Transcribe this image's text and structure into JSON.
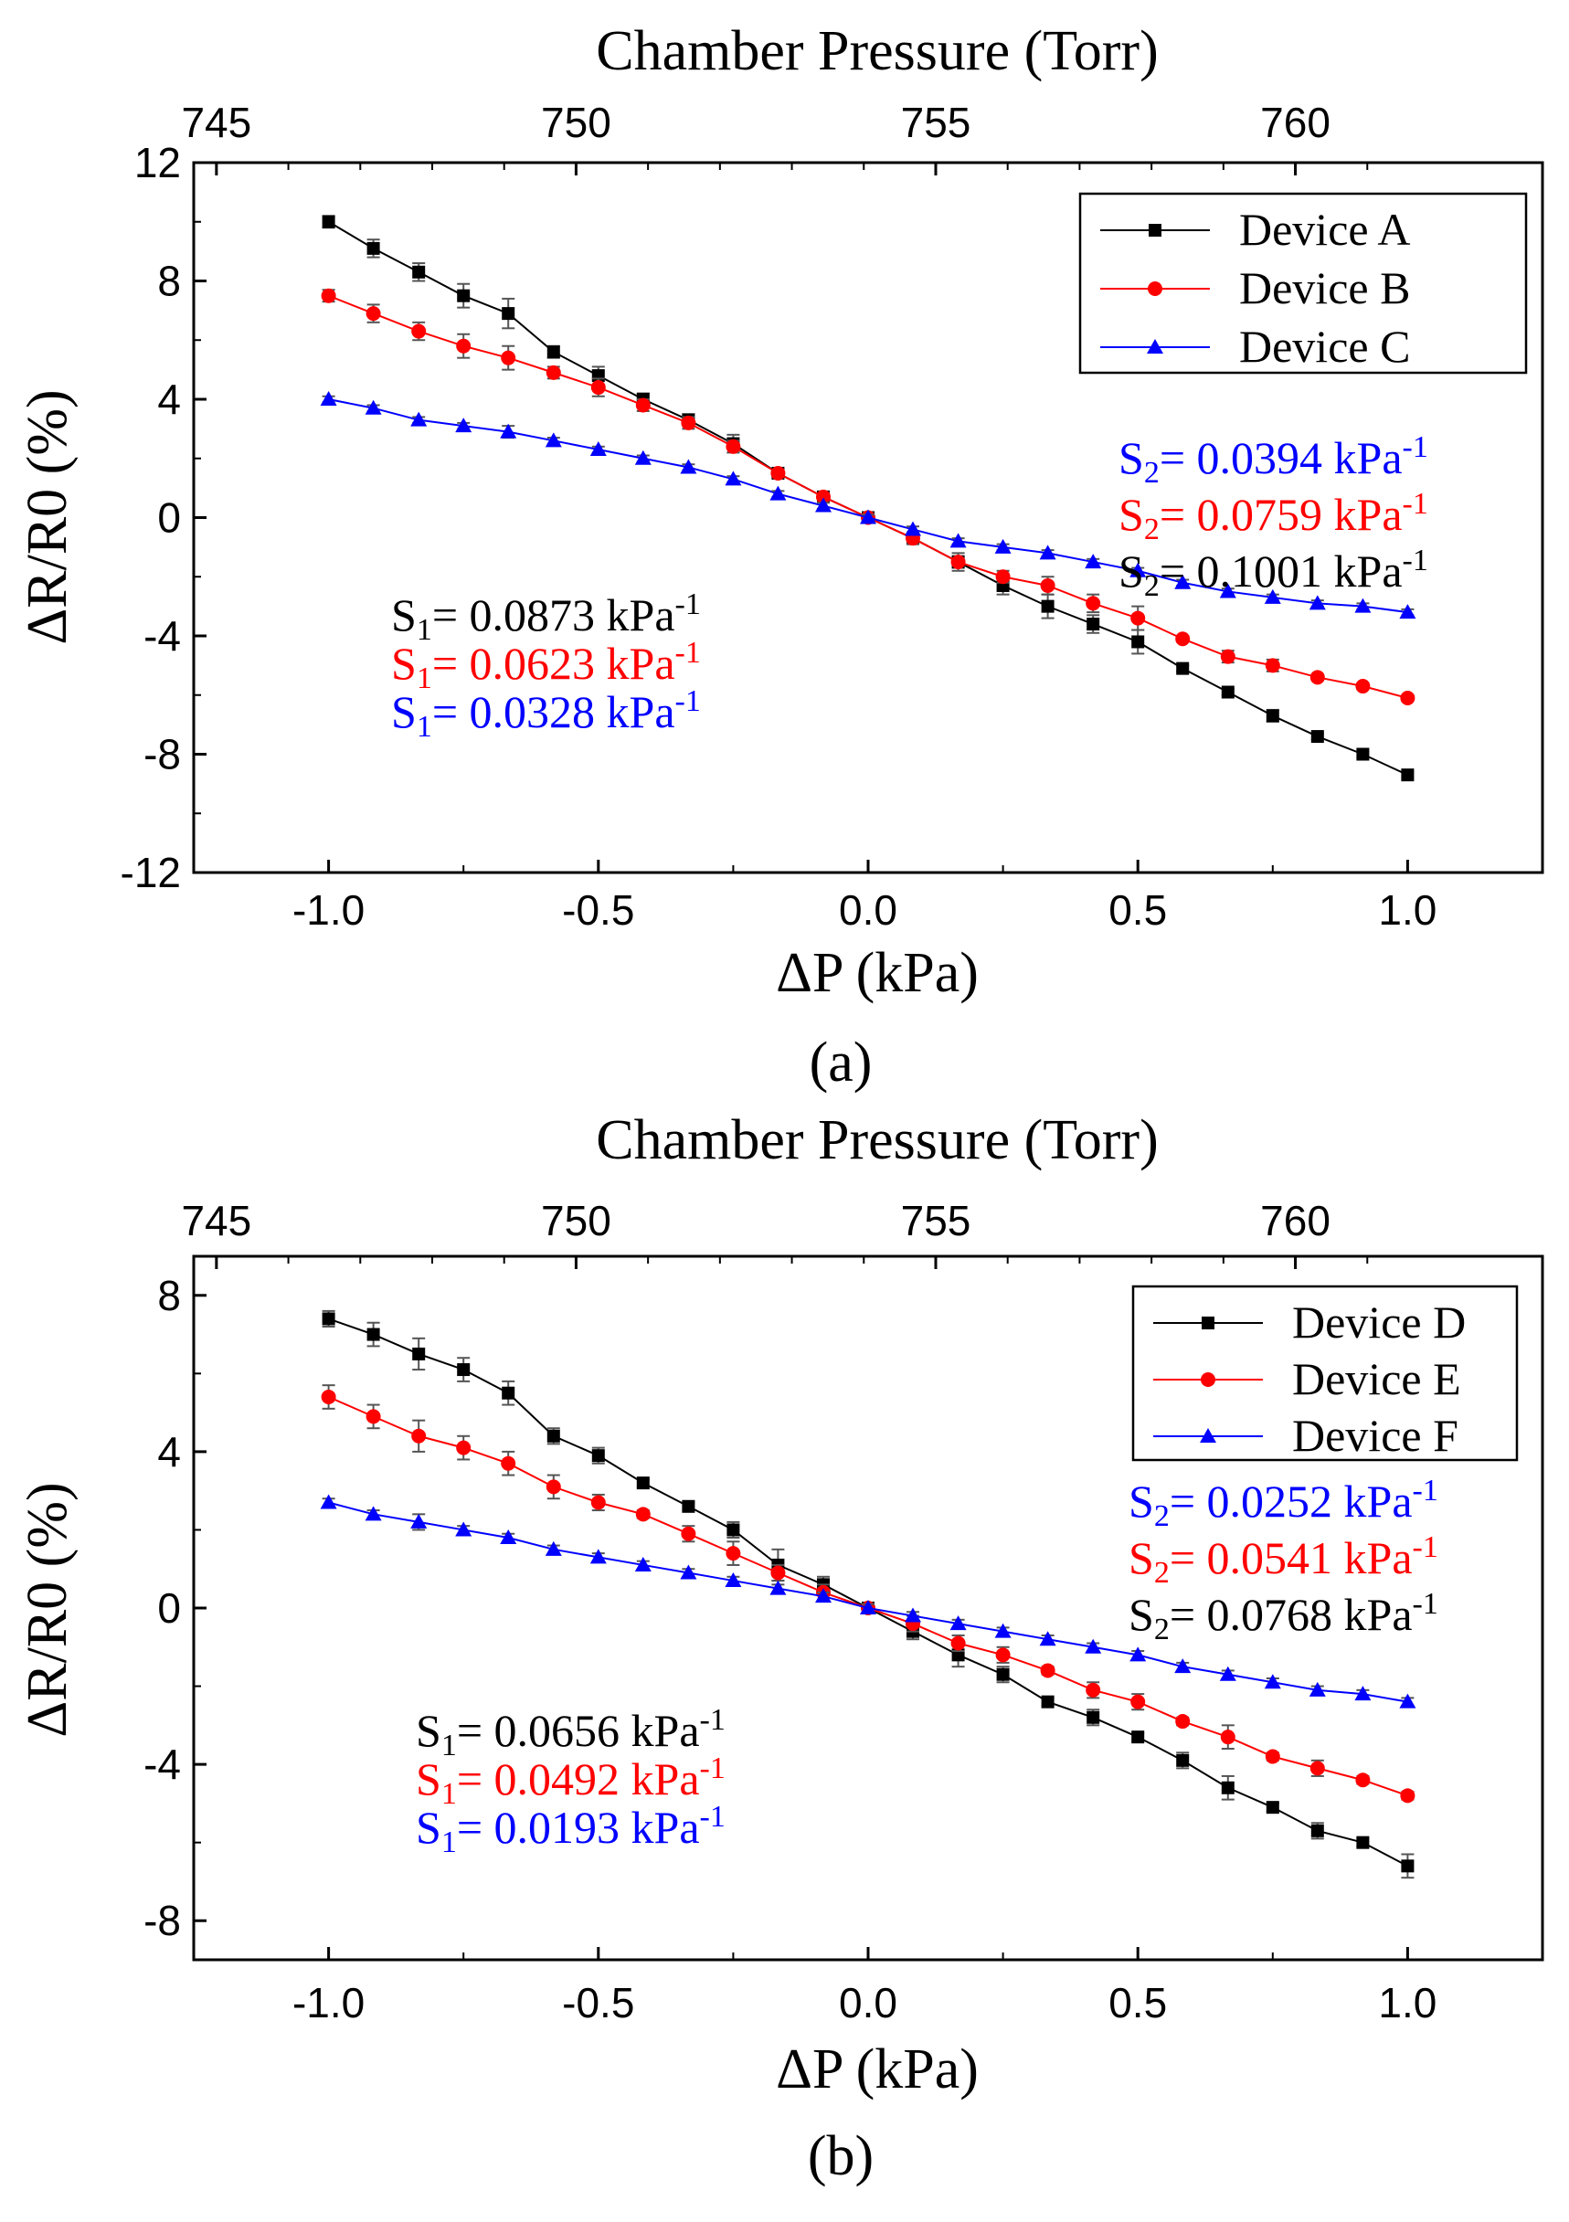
{
  "chart_data": [
    {
      "type": "line",
      "panel_label": "(a)",
      "top_axis_label": "Chamber Pressure (Torr)",
      "xlabel": "ΔP (kPa)",
      "ylabel": "ΔR/R0 (%)",
      "xlim": [
        -1.25,
        1.25
      ],
      "ylim": [
        -12,
        12
      ],
      "x_ticks": [
        -1.0,
        -0.5,
        0.0,
        0.5,
        1.0
      ],
      "x_tick_labels": [
        "-1.0",
        "-0.5",
        "0.0",
        "0.5",
        "1.0"
      ],
      "y_ticks": [
        -12,
        -8,
        -4,
        0,
        4,
        8,
        12
      ],
      "y_tick_labels": [
        "-12",
        "-8",
        "-4",
        "0",
        "4",
        "8",
        "12"
      ],
      "top_ticks": [
        745,
        750,
        755,
        760
      ],
      "top_tick_labels": [
        "745",
        "750",
        "755",
        "760"
      ],
      "legend_position": "top-right",
      "x": [
        -1.0,
        -0.917,
        -0.833,
        -0.75,
        -0.667,
        -0.583,
        -0.5,
        -0.417,
        -0.333,
        -0.25,
        -0.167,
        -0.083,
        0.0,
        0.083,
        0.167,
        0.25,
        0.333,
        0.417,
        0.5,
        0.583,
        0.667,
        0.75,
        0.833,
        0.917,
        1.0
      ],
      "series": [
        {
          "name": "Device A",
          "color": "#000000",
          "marker": "square",
          "values": [
            10.0,
            9.1,
            8.3,
            7.5,
            6.9,
            5.6,
            4.8,
            4.0,
            3.3,
            2.5,
            1.5,
            0.7,
            0.0,
            -0.7,
            -1.5,
            -2.3,
            -3.0,
            -3.6,
            -4.2,
            -5.1,
            -5.9,
            -6.7,
            -7.4,
            -8.0,
            -8.7
          ],
          "errors": [
            0.2,
            0.3,
            0.3,
            0.4,
            0.5,
            0.2,
            0.3,
            0.2,
            0.2,
            0.3,
            0.1,
            0.1,
            0.1,
            0.2,
            0.2,
            0.3,
            0.4,
            0.3,
            0.4,
            0.1,
            0.1,
            0.2,
            0.1,
            0.1,
            0.1
          ]
        },
        {
          "name": "Device B",
          "color": "#ff0000",
          "marker": "circle",
          "values": [
            7.5,
            6.9,
            6.3,
            5.8,
            5.4,
            4.9,
            4.4,
            3.8,
            3.2,
            2.4,
            1.5,
            0.7,
            0.0,
            -0.7,
            -1.5,
            -2.0,
            -2.3,
            -2.9,
            -3.4,
            -4.1,
            -4.7,
            -5.0,
            -5.4,
            -5.7,
            -6.1
          ],
          "errors": [
            0.2,
            0.3,
            0.3,
            0.4,
            0.4,
            0.2,
            0.3,
            0.2,
            0.2,
            0.2,
            0.1,
            0.1,
            0.1,
            0.2,
            0.3,
            0.2,
            0.3,
            0.3,
            0.4,
            0.1,
            0.2,
            0.2,
            0.1,
            0.1,
            0.1
          ]
        },
        {
          "name": "Device C",
          "color": "#0000ff",
          "marker": "triangle",
          "values": [
            4.0,
            3.7,
            3.3,
            3.1,
            2.9,
            2.6,
            2.3,
            2.0,
            1.7,
            1.3,
            0.8,
            0.4,
            0.0,
            -0.4,
            -0.8,
            -1.0,
            -1.2,
            -1.5,
            -1.8,
            -2.2,
            -2.5,
            -2.7,
            -2.9,
            -3.0,
            -3.2
          ],
          "errors": [
            0.1,
            0.1,
            0.1,
            0.1,
            0.2,
            0.1,
            0.1,
            0.1,
            0.1,
            0.1,
            0.1,
            0.1,
            0.1,
            0.1,
            0.1,
            0.1,
            0.1,
            0.1,
            0.1,
            0.1,
            0.1,
            0.1,
            0.1,
            0.1,
            0.1
          ]
        }
      ],
      "annotations_left": [
        {
          "symbol": "S",
          "sub": "1",
          "text": "= 0.0873 kPa",
          "sup": "-1",
          "color": "#000000"
        },
        {
          "symbol": "S",
          "sub": "1",
          "text": "= 0.0623 kPa",
          "sup": "-1",
          "color": "#ff0000"
        },
        {
          "symbol": "S",
          "sub": "1",
          "text": "= 0.0328 kPa",
          "sup": "-1",
          "color": "#0000ff"
        }
      ],
      "annotations_right": [
        {
          "symbol": "S",
          "sub": "2",
          "text": "= 0.0394 kPa",
          "sup": "-1",
          "color": "#0000ff"
        },
        {
          "symbol": "S",
          "sub": "2",
          "text": "= 0.0759 kPa",
          "sup": "-1",
          "color": "#ff0000"
        },
        {
          "symbol": "S",
          "sub": "2",
          "text": "= 0.1001 kPa",
          "sup": "-1",
          "color": "#000000"
        }
      ]
    },
    {
      "type": "line",
      "panel_label": "(b)",
      "top_axis_label": "Chamber Pressure (Torr)",
      "xlabel": "ΔP (kPa)",
      "ylabel": "ΔR/R0 (%)",
      "xlim": [
        -1.25,
        1.25
      ],
      "ylim": [
        -9,
        9
      ],
      "x_ticks": [
        -1.0,
        -0.5,
        0.0,
        0.5,
        1.0
      ],
      "x_tick_labels": [
        "-1.0",
        "-0.5",
        "0.0",
        "0.5",
        "1.0"
      ],
      "y_ticks": [
        -8,
        -4,
        0,
        4,
        8
      ],
      "y_tick_labels": [
        "-8",
        "-4",
        "0",
        "4",
        "8"
      ],
      "top_ticks": [
        745,
        750,
        755,
        760
      ],
      "top_tick_labels": [
        "745",
        "750",
        "755",
        "760"
      ],
      "legend_position": "top-right",
      "x": [
        -1.0,
        -0.917,
        -0.833,
        -0.75,
        -0.667,
        -0.583,
        -0.5,
        -0.417,
        -0.333,
        -0.25,
        -0.167,
        -0.083,
        0.0,
        0.083,
        0.167,
        0.25,
        0.333,
        0.417,
        0.5,
        0.583,
        0.667,
        0.75,
        0.833,
        0.917,
        1.0
      ],
      "series": [
        {
          "name": "Device D",
          "color": "#000000",
          "marker": "square",
          "values": [
            7.4,
            7.0,
            6.5,
            6.1,
            5.5,
            4.4,
            3.9,
            3.2,
            2.6,
            2.0,
            1.1,
            0.6,
            0.0,
            -0.6,
            -1.2,
            -1.7,
            -2.4,
            -2.8,
            -3.3,
            -3.9,
            -4.6,
            -5.1,
            -5.7,
            -6.0,
            -6.6
          ],
          "errors": [
            0.2,
            0.3,
            0.4,
            0.3,
            0.3,
            0.2,
            0.2,
            0.1,
            0.1,
            0.2,
            0.4,
            0.2,
            0.1,
            0.2,
            0.3,
            0.2,
            0.1,
            0.2,
            0.1,
            0.2,
            0.3,
            0.1,
            0.2,
            0.1,
            0.3
          ]
        },
        {
          "name": "Device E",
          "color": "#ff0000",
          "marker": "circle",
          "values": [
            5.4,
            4.9,
            4.4,
            4.1,
            3.7,
            3.1,
            2.7,
            2.4,
            1.9,
            1.4,
            0.9,
            0.4,
            0.0,
            -0.4,
            -0.9,
            -1.2,
            -1.6,
            -2.1,
            -2.4,
            -2.9,
            -3.3,
            -3.8,
            -4.1,
            -4.4,
            -4.8
          ],
          "errors": [
            0.3,
            0.3,
            0.4,
            0.3,
            0.3,
            0.3,
            0.2,
            0.1,
            0.2,
            0.3,
            0.2,
            0.2,
            0.1,
            0.2,
            0.2,
            0.2,
            0.1,
            0.2,
            0.2,
            0.1,
            0.3,
            0.1,
            0.2,
            0.1,
            0.1
          ]
        },
        {
          "name": "Device F",
          "color": "#0000ff",
          "marker": "triangle",
          "values": [
            2.7,
            2.4,
            2.2,
            2.0,
            1.8,
            1.5,
            1.3,
            1.1,
            0.9,
            0.7,
            0.5,
            0.3,
            0.0,
            -0.2,
            -0.4,
            -0.6,
            -0.8,
            -1.0,
            -1.2,
            -1.5,
            -1.7,
            -1.9,
            -2.1,
            -2.2,
            -2.4
          ],
          "errors": [
            0.1,
            0.1,
            0.2,
            0.1,
            0.1,
            0.1,
            0.1,
            0.1,
            0.1,
            0.1,
            0.1,
            0.1,
            0.1,
            0.1,
            0.1,
            0.1,
            0.1,
            0.1,
            0.1,
            0.1,
            0.1,
            0.1,
            0.1,
            0.1,
            0.1
          ]
        }
      ],
      "annotations_left": [
        {
          "symbol": "S",
          "sub": "1",
          "text": "= 0.0656 kPa",
          "sup": "-1",
          "color": "#000000"
        },
        {
          "symbol": "S",
          "sub": "1",
          "text": "= 0.0492 kPa",
          "sup": "-1",
          "color": "#ff0000"
        },
        {
          "symbol": "S",
          "sub": "1",
          "text": "= 0.0193 kPa",
          "sup": "-1",
          "color": "#0000ff"
        }
      ],
      "annotations_right": [
        {
          "symbol": "S",
          "sub": "2",
          "text": "= 0.0252 kPa",
          "sup": "-1",
          "color": "#0000ff"
        },
        {
          "symbol": "S",
          "sub": "2",
          "text": "= 0.0541 kPa",
          "sup": "-1",
          "color": "#ff0000"
        },
        {
          "symbol": "S",
          "sub": "2",
          "text": "= 0.0768 kPa",
          "sup": "-1",
          "color": "#000000"
        }
      ]
    }
  ]
}
